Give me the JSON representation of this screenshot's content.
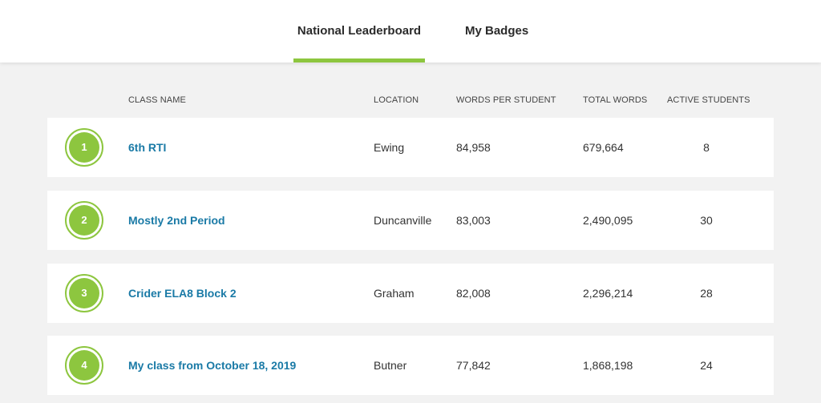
{
  "tabs": {
    "leaderboard_label": "National Leaderboard",
    "badges_label": "My Badges",
    "active": "National Leaderboard"
  },
  "columns": {
    "class_name": "CLASS NAME",
    "location": "LOCATION",
    "words_per_student": "WORDS PER STUDENT",
    "total_words": "TOTAL WORDS",
    "active_students": "ACTIVE STUDENTS"
  },
  "rows": [
    {
      "rank": "1",
      "class_name": "6th RTI",
      "location": "Ewing",
      "words_per_student": "84,958",
      "total_words": "679,664",
      "active_students": "8"
    },
    {
      "rank": "2",
      "class_name": "Mostly 2nd Period",
      "location": "Duncanville",
      "words_per_student": "83,003",
      "total_words": "2,490,095",
      "active_students": "30"
    },
    {
      "rank": "3",
      "class_name": "Crider ELA8 Block 2",
      "location": "Graham",
      "words_per_student": "82,008",
      "total_words": "2,296,214",
      "active_students": "28"
    },
    {
      "rank": "4",
      "class_name": "My class from October 18, 2019",
      "location": "Butner",
      "words_per_student": "77,842",
      "total_words": "1,868,198",
      "active_students": "24"
    }
  ],
  "colors": {
    "accent_green": "#8dc63f",
    "link_blue": "#1a7aa6",
    "background": "#f2f2f2"
  }
}
